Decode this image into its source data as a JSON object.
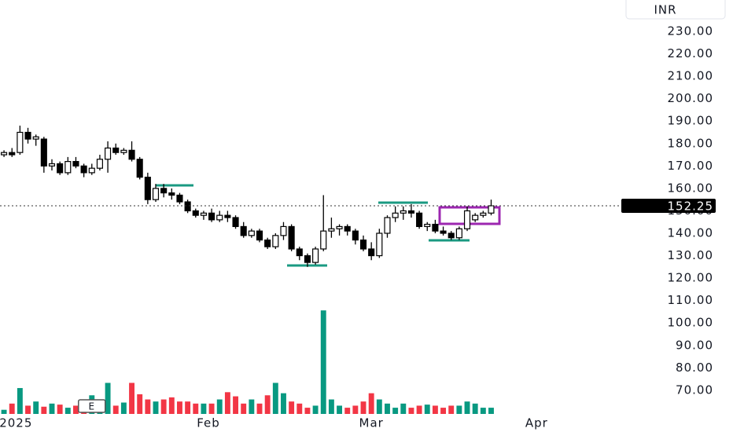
{
  "chart_data": {
    "type": "candlestick",
    "currency": "INR",
    "event_marker": "E",
    "last_price": 152.25,
    "ylim": [
      51.4,
      244
    ],
    "yticks": [
      {
        "value": 230,
        "label": "230.00"
      },
      {
        "value": 220,
        "label": "220.00"
      },
      {
        "value": 210,
        "label": "210.00"
      },
      {
        "value": 200,
        "label": "200.00"
      },
      {
        "value": 190,
        "label": "190.00"
      },
      {
        "value": 180,
        "label": "180.00"
      },
      {
        "value": 170,
        "label": "170.00"
      },
      {
        "value": 160,
        "label": "160.00"
      },
      {
        "value": 150,
        "label": "150.00"
      },
      {
        "value": 140,
        "label": "140.00"
      },
      {
        "value": 130,
        "label": "130.00"
      },
      {
        "value": 120,
        "label": "120.00"
      },
      {
        "value": 110,
        "label": "110.00"
      },
      {
        "value": 100,
        "label": "100.00"
      },
      {
        "value": 90,
        "label": "90.00"
      },
      {
        "value": 80,
        "label": "80.00"
      },
      {
        "value": 70,
        "label": "70.00"
      }
    ],
    "xlim": [
      -0.5,
      77.3
    ],
    "xticks": [
      {
        "value": 1.5,
        "label": "2025"
      },
      {
        "value": 25.6,
        "label": "Feb"
      },
      {
        "value": 46,
        "label": "Mar"
      },
      {
        "value": 66.7,
        "label": "Apr"
      }
    ],
    "up_color": "#ffffff",
    "down_color": "#000000",
    "open": [
      175,
      176,
      176,
      185,
      182,
      182,
      170,
      171,
      167,
      172,
      170,
      167,
      169,
      173,
      178,
      176,
      177,
      173,
      165,
      155,
      160,
      158,
      157,
      154,
      150,
      148,
      149,
      146,
      148,
      147,
      143,
      139,
      141,
      137,
      134,
      139,
      143,
      133,
      130,
      127,
      133,
      141,
      142,
      143,
      141,
      137,
      133,
      130,
      140,
      147,
      149,
      150,
      149,
      143,
      144,
      141,
      140,
      138,
      142,
      146,
      148,
      149
    ],
    "high": [
      177,
      178,
      188,
      187,
      184,
      183,
      173,
      172,
      174,
      174,
      171,
      171,
      175,
      181,
      180,
      178,
      181,
      174,
      167,
      162,
      162,
      160,
      158,
      155,
      151,
      150,
      151,
      150,
      150,
      148,
      145,
      142,
      142,
      138,
      140,
      145,
      144,
      134,
      131,
      134,
      157,
      147,
      144,
      144,
      142,
      139,
      136,
      142,
      148,
      152,
      152,
      153,
      150,
      145,
      146,
      143,
      141,
      143,
      152,
      149,
      150,
      155
    ],
    "low": [
      174,
      174,
      175,
      180,
      179,
      167,
      168,
      166,
      166,
      169,
      165,
      166,
      168,
      167,
      175,
      175,
      172,
      164,
      153,
      154,
      156,
      155,
      153,
      149,
      147,
      146,
      145,
      145,
      145,
      142,
      138,
      138,
      136,
      133,
      133,
      137,
      132,
      128,
      125,
      126,
      132,
      138,
      139,
      139,
      135,
      132,
      128,
      129,
      138,
      145,
      146,
      147,
      142,
      141,
      140,
      139,
      137,
      137,
      141,
      145,
      147,
      148
    ],
    "close": [
      176,
      175,
      185,
      182,
      183,
      170,
      171,
      167,
      172,
      170,
      167,
      169,
      173,
      178,
      176,
      177,
      173,
      165,
      155,
      160,
      158,
      157,
      154,
      150,
      148,
      149,
      146,
      148,
      147,
      143,
      139,
      141,
      137,
      134,
      139,
      143,
      133,
      130,
      127,
      133,
      141,
      142,
      143,
      141,
      137,
      133,
      130,
      140,
      147,
      149,
      150,
      149,
      143,
      144,
      141,
      140,
      138,
      142,
      150,
      148,
      149,
      152.25
    ],
    "volume": {
      "up_color": "#089981",
      "down_color": "#f23645",
      "ylim": [
        0,
        110
      ],
      "values": [
        4,
        10,
        25,
        8,
        12,
        7,
        10,
        9,
        6,
        8,
        6,
        18,
        12,
        30,
        8,
        11,
        30,
        19,
        14,
        12,
        14,
        16,
        12,
        12,
        10,
        10,
        10,
        14,
        21,
        17,
        10,
        14,
        10,
        18,
        30,
        20,
        12,
        10,
        6,
        8,
        100,
        14,
        8,
        6,
        8,
        12,
        20,
        14,
        10,
        6,
        10,
        6,
        8,
        9,
        8,
        6,
        8,
        8,
        12,
        10,
        6,
        6
      ]
    }
  }
}
